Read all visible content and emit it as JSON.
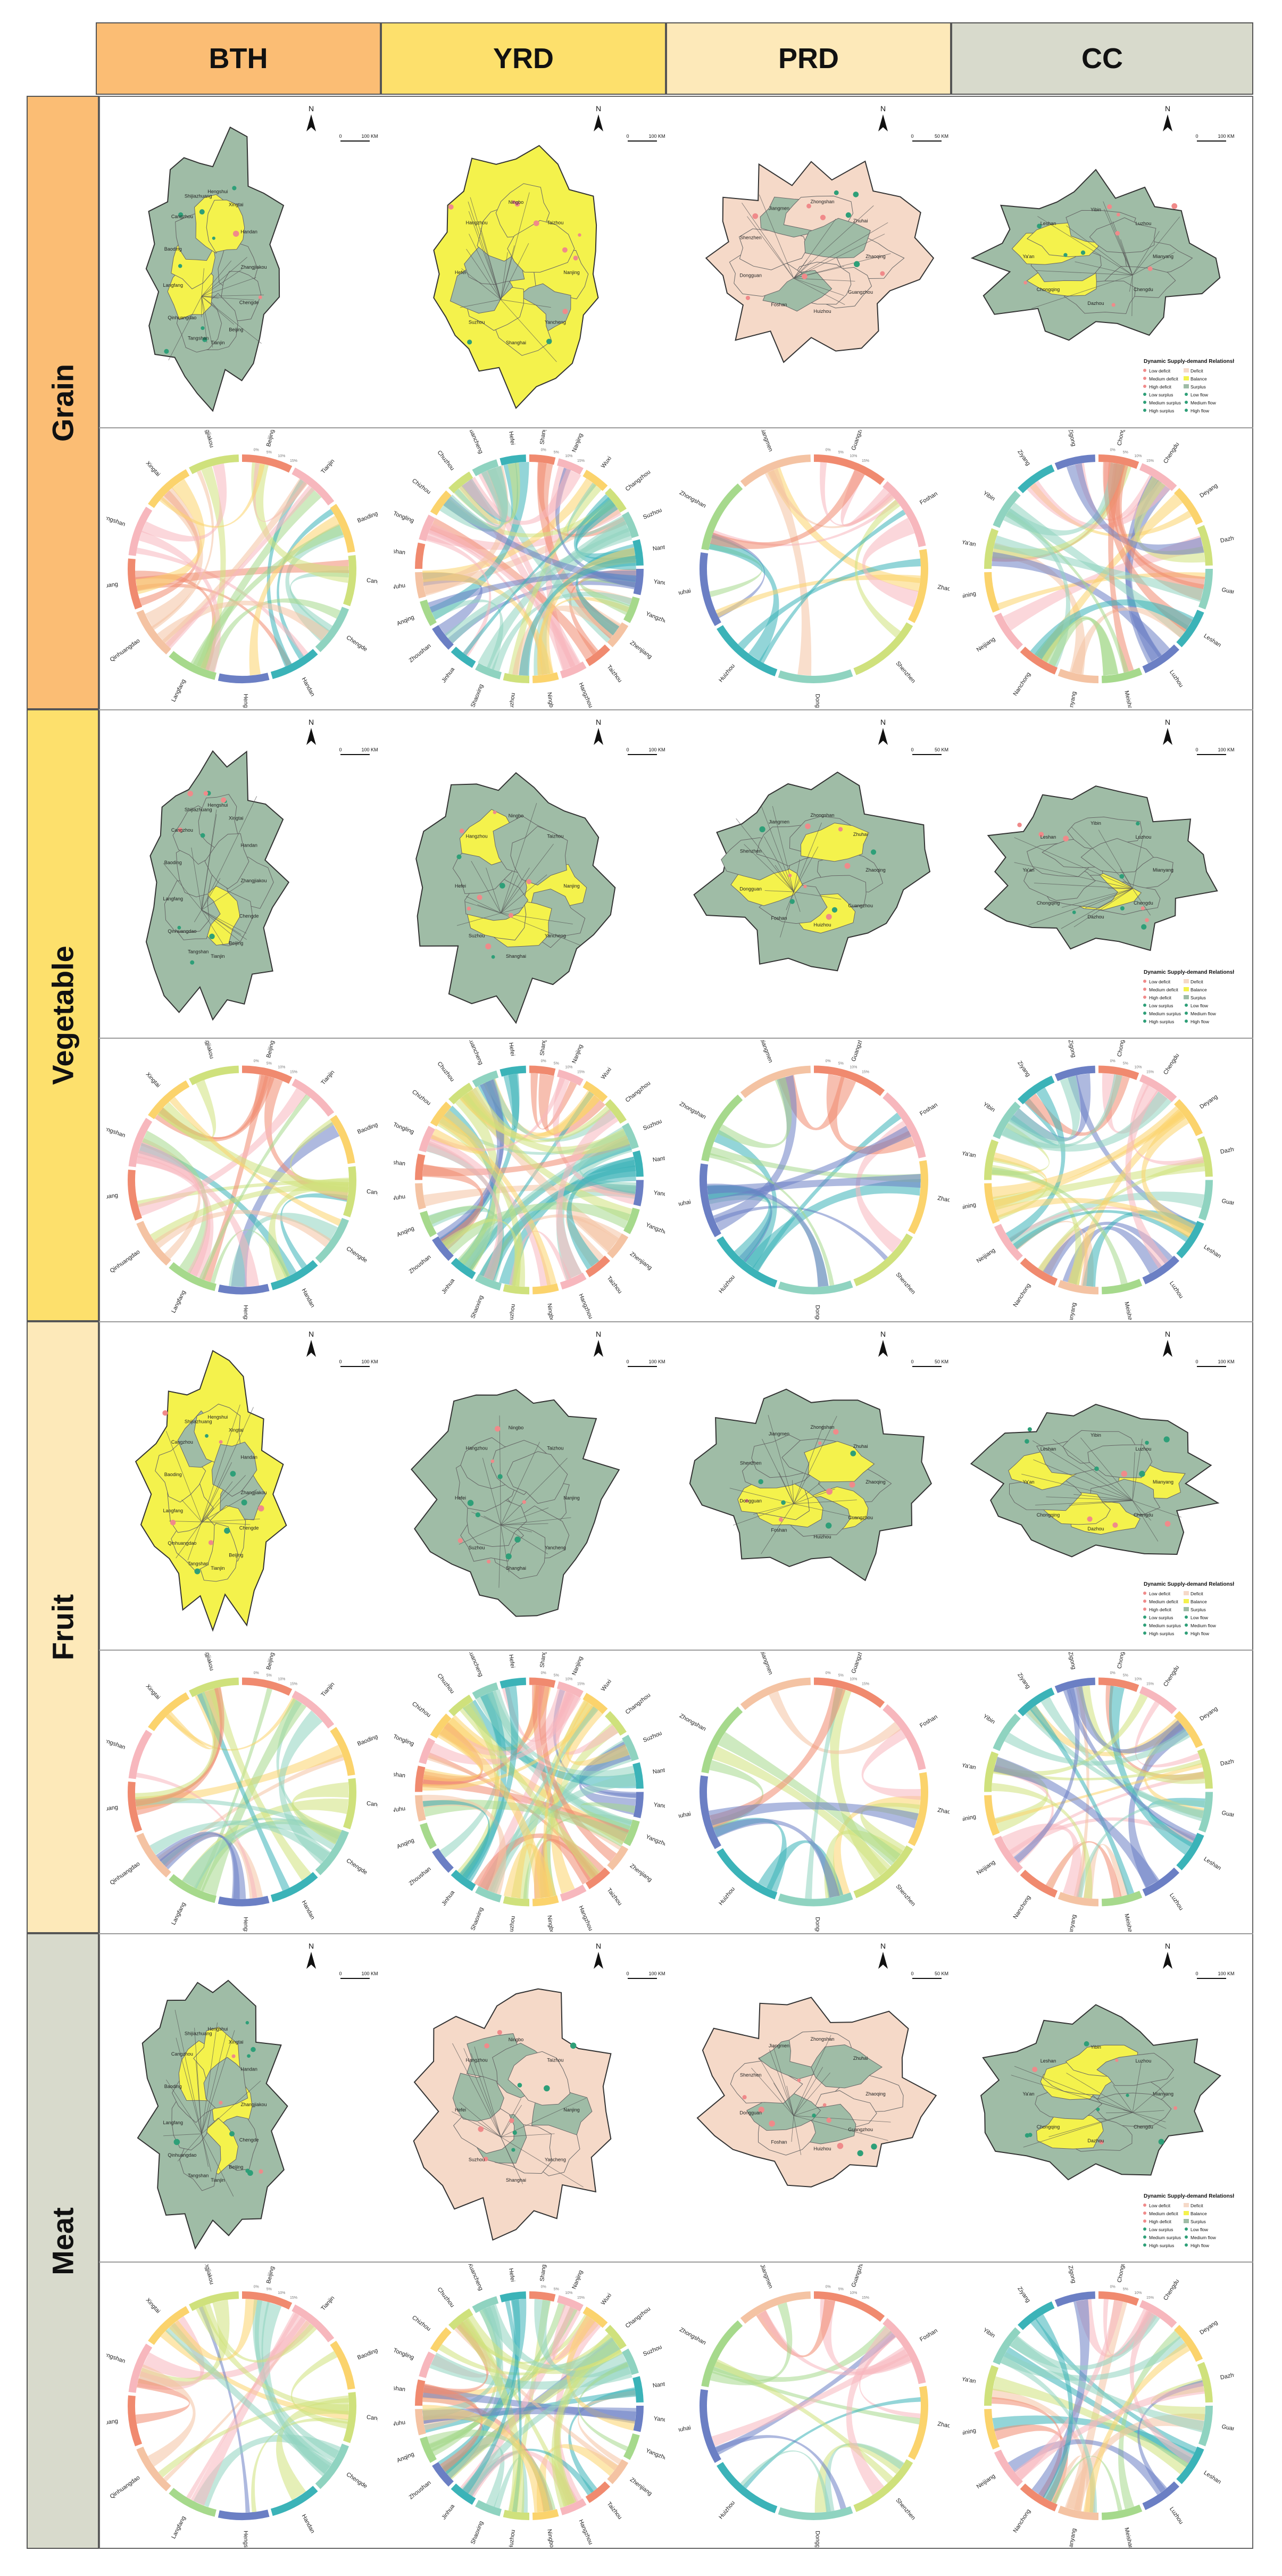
{
  "columns": [
    {
      "label": "BTH",
      "color": "#fbbd74"
    },
    {
      "label": "YRD",
      "color": "#fde06c"
    },
    {
      "label": "PRD",
      "color": "#fde9b9"
    },
    {
      "label": "CC",
      "color": "#d8dacc"
    }
  ],
  "rows": [
    {
      "label": "Grain",
      "color": "#fbbd74"
    },
    {
      "label": "Vegetable",
      "color": "#fde06c"
    },
    {
      "label": "Fruit",
      "color": "#fde9b9"
    },
    {
      "label": "Meat",
      "color": "#d8dacc"
    }
  ],
  "map_labels": {
    "north": "N",
    "scale_bth": "100 KM",
    "scale_yrd": "100 KM",
    "scale_prd": "50 KM",
    "scale_cc": "100 KM",
    "scale_zero": "0"
  },
  "legend": {
    "title": "Dynamic Supply-demand Relationships",
    "items": [
      "Low deficit",
      "Deficit",
      "Medium deficit",
      "Balance",
      "High deficit",
      "Surplus",
      "Low surplus",
      "Low flow",
      "Medium surplus",
      "Medium flow",
      "High surplus",
      "High flow"
    ]
  },
  "colors": {
    "map_green": "#9fbca6",
    "map_yellow": "#f4f24c",
    "map_pink": "#f5d9c8",
    "chord_palette": [
      "#f08a6f",
      "#f7b7bd",
      "#fbd36c",
      "#cfe17c",
      "#8fd3c0",
      "#3bb3b8",
      "#6b7fc4",
      "#a6d98c",
      "#f4c3a3"
    ]
  },
  "chords": {
    "bth": [
      "Beijing",
      "Tianjin",
      "Baoding",
      "Cangzhou",
      "Chengde",
      "Handan",
      "Hengshui",
      "Langfang",
      "Qinhuangdao",
      "Shijiazhuang",
      "Tangshan",
      "Xingtai",
      "Zhangjiakou"
    ],
    "yrd": [
      "Shanghai",
      "Nanjing",
      "Wuxi",
      "Changzhou",
      "Suzhou",
      "Nantong",
      "Yancheng",
      "Yangzhou",
      "Zhenjiang",
      "Taizhou",
      "Hangzhou",
      "Ningbo",
      "Huzhou",
      "Shaoxing",
      "Jinhua",
      "Zhoushan",
      "Anqing",
      "Wuhu",
      "Maanshan",
      "Tongling",
      "Chizhou",
      "Chuzhou",
      "Xuancheng",
      "Hefei"
    ],
    "prd": [
      "Guangzhou",
      "Foshan",
      "Zhaoqing",
      "Shenzhen",
      "Dongguan",
      "Huizhou",
      "Zhuhai",
      "Zhongshan",
      "Jiangmen"
    ],
    "cc": [
      "Chongqing",
      "Chengdu",
      "Deyang",
      "Dazhou",
      "Guang'an",
      "Leshan",
      "Luzhou",
      "Meishan",
      "Mianyang",
      "Nanchong",
      "Neijiang",
      "Suining",
      "Ya'an",
      "Yibin",
      "Ziyang",
      "Zigong"
    ]
  },
  "tick_labels": [
    "0%",
    "5%",
    "10%",
    "15%",
    "20%",
    "25%",
    "30%"
  ],
  "map_places": {
    "bth": [
      "Zhangjiakou",
      "Chengde",
      "Beijing",
      "Tianjin",
      "Tangshan",
      "Qinhuangdao",
      "Langfang",
      "Baoding",
      "Cangzhou",
      "Shijiazhuang",
      "Hengshui",
      "Xingtai",
      "Handan"
    ],
    "yrd": [
      "Nanjing",
      "Yancheng",
      "Shanghai",
      "Suzhou",
      "Hefei",
      "Hangzhou",
      "Ningbo",
      "Taizhou"
    ],
    "prd": [
      "Zhaoqing",
      "Guangzhou",
      "Huizhou",
      "Foshan",
      "Dongguan",
      "Shenzhen",
      "Jiangmen",
      "Zhongshan",
      "Zhuhai"
    ],
    "cc": [
      "Mianyang",
      "Chengdu",
      "Dazhou",
      "Chongqing",
      "Ya'an",
      "Leshan",
      "Yibin",
      "Luzhou"
    ]
  }
}
